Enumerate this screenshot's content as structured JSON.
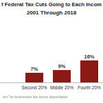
{
  "chart_data": {
    "type": "bar",
    "title": "f Federal Tax Cuts Going to Each Incom",
    "subtitle": "2001 Through 2018",
    "footnote": "ers\" for businesses like bonus depreciation",
    "categories": [
      "Second 20%",
      "Middle 20%",
      "Fourth 20%"
    ],
    "values": [
      7,
      9,
      16
    ],
    "value_labels": [
      "7%",
      "9%",
      "16%"
    ],
    "data_labels": true,
    "color": "#8b1a14",
    "ylim": [
      0,
      16
    ],
    "grid": false,
    "tick_labels": "x"
  }
}
